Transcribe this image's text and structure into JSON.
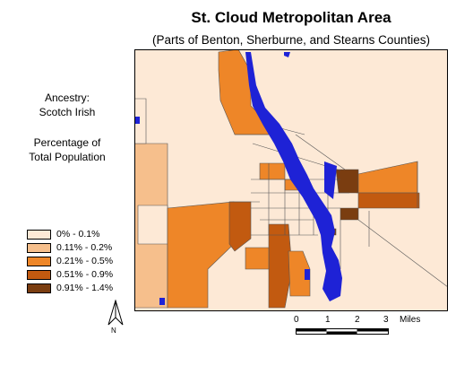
{
  "title": "St. Cloud Metropolitan Area",
  "subtitle": "(Parts of Benton, Sherburne, and Stearns Counties)",
  "legend_title": {
    "line1": "Ancestry:",
    "line2": "Scotch Irish",
    "line3": "Percentage of",
    "line4": "Total Population"
  },
  "legend": [
    {
      "label": "0% - 0.1%",
      "color": "#fde9d6"
    },
    {
      "label": "0.11% - 0.2%",
      "color": "#f6bf8c"
    },
    {
      "label": "0.21% - 0.5%",
      "color": "#ee8628"
    },
    {
      "label": "0.51% - 0.9%",
      "color": "#c25a10"
    },
    {
      "label": "0.91% - 1.4%",
      "color": "#7a3d10"
    }
  ],
  "water_color": "#1e22d6",
  "north_label": "N",
  "scalebar": {
    "ticks": [
      "0",
      "1",
      "2",
      "3"
    ],
    "unit": "Miles"
  }
}
